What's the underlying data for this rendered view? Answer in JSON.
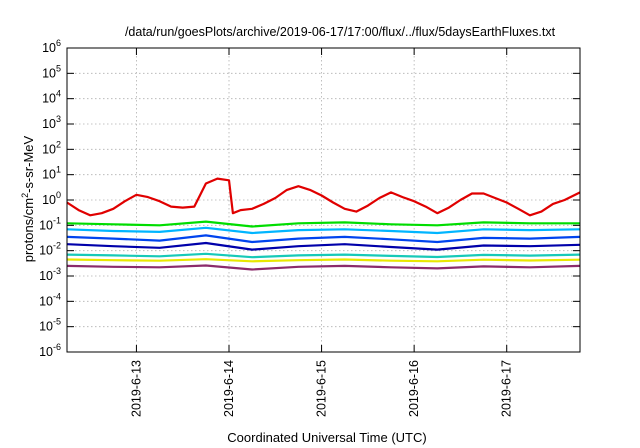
{
  "chart_data": {
    "type": "line",
    "title": "/data/run/goesPlots/archive/2019-06-17/17:00/flux/../flux/5daysEarthFluxes.txt",
    "xlabel": "Coordinated Universal Time (UTC)",
    "ylabel": {
      "prefix": "protons/cm",
      "sup": "2",
      "suffix": "-s-sr-MeV"
    },
    "x_scale": "time",
    "xlim": [
      "2019-06-12 06:00",
      "2019-06-17 19:00"
    ],
    "x_ticks": [
      {
        "label": "2019-6-13",
        "t": "2019-06-13 00:00"
      },
      {
        "label": "2019-6-14",
        "t": "2019-06-14 00:00"
      },
      {
        "label": "2019-6-15",
        "t": "2019-06-15 00:00"
      },
      {
        "label": "2019-6-16",
        "t": "2019-06-16 00:00"
      },
      {
        "label": "2019-6-17",
        "t": "2019-06-17 00:00"
      }
    ],
    "y_scale": "log",
    "ylim": [
      1e-06,
      1000000.0
    ],
    "y_ticks": [
      {
        "value": 1e-06,
        "base": "10",
        "exp": "-6"
      },
      {
        "value": 1e-05,
        "base": "10",
        "exp": "-5"
      },
      {
        "value": 0.0001,
        "base": "10",
        "exp": "-4"
      },
      {
        "value": 0.001,
        "base": "10",
        "exp": "-3"
      },
      {
        "value": 0.01,
        "base": "10",
        "exp": "-2"
      },
      {
        "value": 0.1,
        "base": "10",
        "exp": "-1"
      },
      {
        "value": 1,
        "base": "10",
        "exp": "0"
      },
      {
        "value": 10,
        "base": "10",
        "exp": "1"
      },
      {
        "value": 100,
        "base": "10",
        "exp": "2"
      },
      {
        "value": 1000,
        "base": "10",
        "exp": "3"
      },
      {
        "value": 10000,
        "base": "10",
        "exp": "4"
      },
      {
        "value": 100000,
        "base": "10",
        "exp": "5"
      },
      {
        "value": 1000000,
        "base": "10",
        "exp": "6"
      }
    ],
    "grid": true,
    "series": [
      {
        "color": "#e00000",
        "x": [
          "2019-06-12 06:00",
          "2019-06-12 09:00",
          "2019-06-12 12:00",
          "2019-06-12 15:00",
          "2019-06-12 18:00",
          "2019-06-12 21:00",
          "2019-06-13 00:00",
          "2019-06-13 03:00",
          "2019-06-13 06:00",
          "2019-06-13 09:00",
          "2019-06-13 12:00",
          "2019-06-13 15:00",
          "2019-06-13 18:00",
          "2019-06-13 21:00",
          "2019-06-14 00:00",
          "2019-06-14 01:00",
          "2019-06-14 03:00",
          "2019-06-14 06:00",
          "2019-06-14 09:00",
          "2019-06-14 12:00",
          "2019-06-14 15:00",
          "2019-06-14 18:00",
          "2019-06-14 21:00",
          "2019-06-15 00:00",
          "2019-06-15 03:00",
          "2019-06-15 06:00",
          "2019-06-15 09:00",
          "2019-06-15 12:00",
          "2019-06-15 15:00",
          "2019-06-15 18:00",
          "2019-06-15 21:00",
          "2019-06-16 00:00",
          "2019-06-16 03:00",
          "2019-06-16 06:00",
          "2019-06-16 09:00",
          "2019-06-16 12:00",
          "2019-06-16 15:00",
          "2019-06-16 18:00",
          "2019-06-16 21:00",
          "2019-06-17 00:00",
          "2019-06-17 03:00",
          "2019-06-17 06:00",
          "2019-06-17 09:00",
          "2019-06-17 12:00",
          "2019-06-17 15:00",
          "2019-06-17 19:00"
        ],
        "y": [
          0.8,
          0.4,
          0.25,
          0.3,
          0.45,
          0.9,
          1.6,
          1.3,
          0.9,
          0.55,
          0.5,
          0.55,
          4.5,
          7,
          6,
          0.3,
          0.4,
          0.45,
          0.7,
          1.2,
          2.5,
          3.5,
          2.5,
          1.5,
          0.8,
          0.45,
          0.35,
          0.6,
          1.2,
          2,
          1.3,
          0.9,
          0.55,
          0.3,
          0.5,
          1,
          1.8,
          1.8,
          1.2,
          0.8,
          0.45,
          0.25,
          0.35,
          0.7,
          1,
          2
        ]
      },
      {
        "color": "#00dd00",
        "x": [
          "2019-06-12 06:00",
          "2019-06-12 18:00",
          "2019-06-13 06:00",
          "2019-06-13 18:00",
          "2019-06-14 06:00",
          "2019-06-14 18:00",
          "2019-06-15 06:00",
          "2019-06-15 18:00",
          "2019-06-16 06:00",
          "2019-06-16 18:00",
          "2019-06-17 06:00",
          "2019-06-17 19:00"
        ],
        "y": [
          0.12,
          0.11,
          0.1,
          0.14,
          0.09,
          0.12,
          0.13,
          0.11,
          0.1,
          0.13,
          0.12,
          0.12
        ]
      },
      {
        "color": "#00b5ff",
        "x": [
          "2019-06-12 06:00",
          "2019-06-12 18:00",
          "2019-06-13 06:00",
          "2019-06-13 18:00",
          "2019-06-14 06:00",
          "2019-06-14 18:00",
          "2019-06-15 06:00",
          "2019-06-15 18:00",
          "2019-06-16 06:00",
          "2019-06-16 18:00",
          "2019-06-17 06:00",
          "2019-06-17 19:00"
        ],
        "y": [
          0.07,
          0.06,
          0.055,
          0.08,
          0.05,
          0.065,
          0.07,
          0.06,
          0.05,
          0.07,
          0.065,
          0.07
        ]
      },
      {
        "color": "#0044ee",
        "x": [
          "2019-06-12 06:00",
          "2019-06-12 18:00",
          "2019-06-13 06:00",
          "2019-06-13 18:00",
          "2019-06-14 06:00",
          "2019-06-14 18:00",
          "2019-06-15 06:00",
          "2019-06-15 18:00",
          "2019-06-16 06:00",
          "2019-06-16 18:00",
          "2019-06-17 06:00",
          "2019-06-17 19:00"
        ],
        "y": [
          0.035,
          0.03,
          0.025,
          0.04,
          0.022,
          0.03,
          0.035,
          0.028,
          0.022,
          0.032,
          0.03,
          0.035
        ]
      },
      {
        "color": "#0000aa",
        "x": [
          "2019-06-12 06:00",
          "2019-06-12 18:00",
          "2019-06-13 06:00",
          "2019-06-13 18:00",
          "2019-06-14 06:00",
          "2019-06-14 18:00",
          "2019-06-15 06:00",
          "2019-06-15 18:00",
          "2019-06-16 06:00",
          "2019-06-16 18:00",
          "2019-06-17 06:00",
          "2019-06-17 19:00"
        ],
        "y": [
          0.018,
          0.015,
          0.013,
          0.02,
          0.011,
          0.015,
          0.018,
          0.014,
          0.011,
          0.016,
          0.015,
          0.017
        ]
      },
      {
        "color": "#17c9b8",
        "x": [
          "2019-06-12 06:00",
          "2019-06-12 18:00",
          "2019-06-13 06:00",
          "2019-06-13 18:00",
          "2019-06-14 06:00",
          "2019-06-14 18:00",
          "2019-06-15 06:00",
          "2019-06-15 18:00",
          "2019-06-16 06:00",
          "2019-06-16 18:00",
          "2019-06-17 06:00",
          "2019-06-17 19:00"
        ],
        "y": [
          0.007,
          0.0065,
          0.006,
          0.0075,
          0.0055,
          0.0065,
          0.007,
          0.0062,
          0.0056,
          0.0068,
          0.0064,
          0.007
        ]
      },
      {
        "color": "#e8e800",
        "x": [
          "2019-06-12 06:00",
          "2019-06-12 18:00",
          "2019-06-13 06:00",
          "2019-06-13 18:00",
          "2019-06-14 06:00",
          "2019-06-14 18:00",
          "2019-06-15 06:00",
          "2019-06-15 18:00",
          "2019-06-16 06:00",
          "2019-06-16 18:00",
          "2019-06-17 06:00",
          "2019-06-17 19:00"
        ],
        "y": [
          0.0045,
          0.0042,
          0.004,
          0.0046,
          0.0038,
          0.0042,
          0.0045,
          0.004,
          0.0038,
          0.0044,
          0.0041,
          0.0044
        ]
      },
      {
        "color": "#8b2b6b",
        "x": [
          "2019-06-12 06:00",
          "2019-06-12 18:00",
          "2019-06-13 06:00",
          "2019-06-13 18:00",
          "2019-06-14 06:00",
          "2019-06-14 18:00",
          "2019-06-15 06:00",
          "2019-06-15 18:00",
          "2019-06-16 06:00",
          "2019-06-16 18:00",
          "2019-06-17 06:00",
          "2019-06-17 19:00"
        ],
        "y": [
          0.0025,
          0.0023,
          0.0022,
          0.0026,
          0.0018,
          0.0023,
          0.0025,
          0.0022,
          0.002,
          0.0024,
          0.0022,
          0.0025
        ]
      }
    ]
  }
}
